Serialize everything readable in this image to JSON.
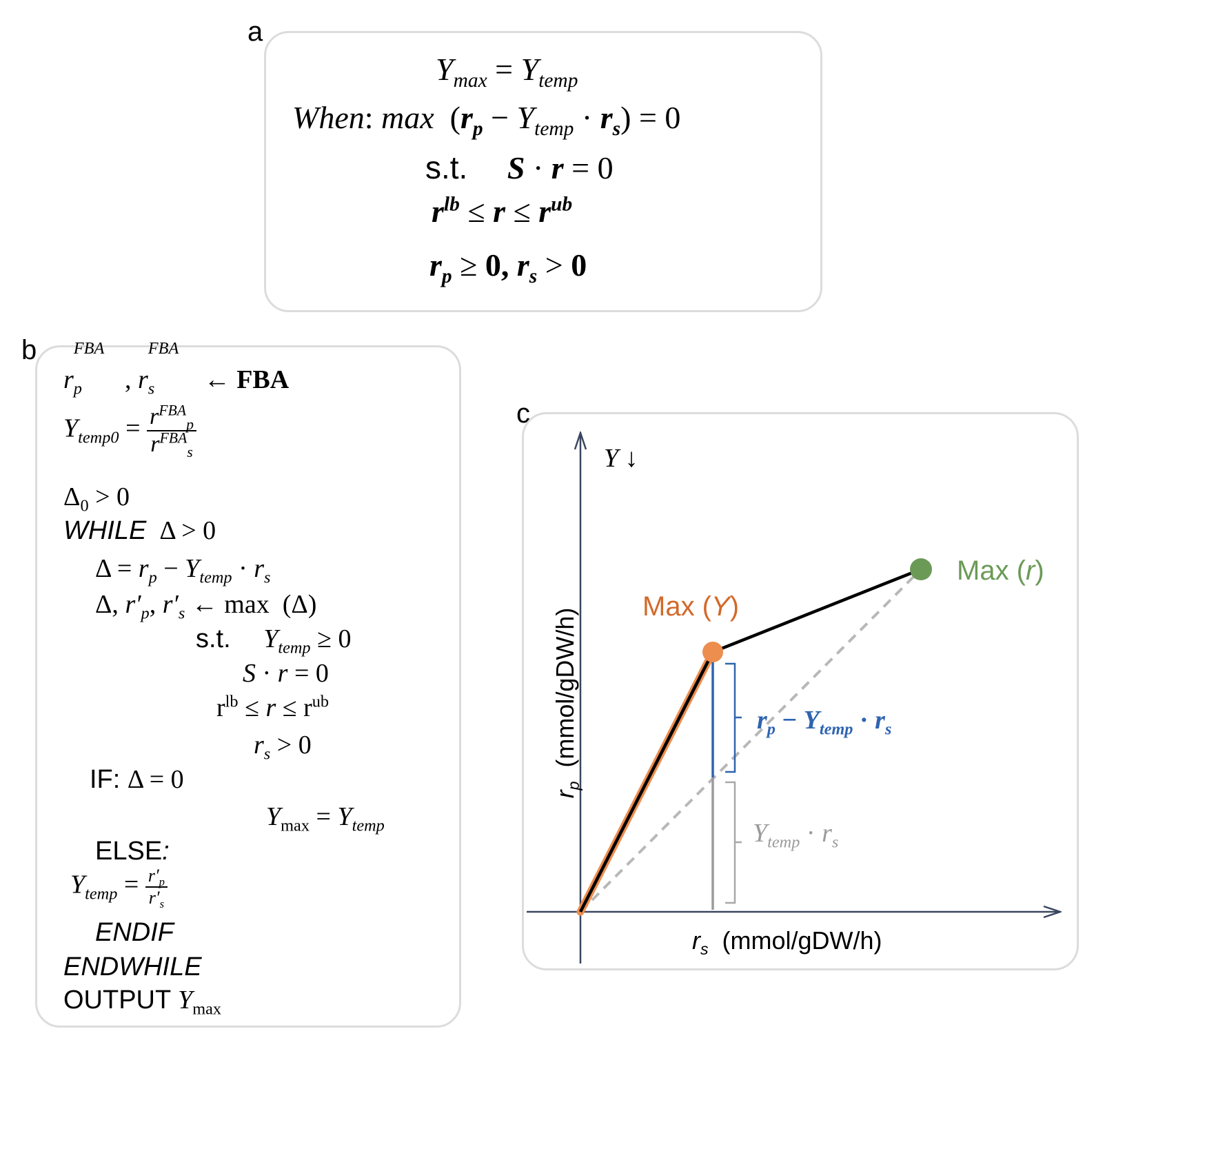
{
  "panels": {
    "a": {
      "letter": "a",
      "line1": {
        "lhs": "Y",
        "lhs_sub": "max",
        "eq": "=",
        "rhs": "Y",
        "rhs_sub": "temp"
      },
      "line2": {
        "when": "When",
        "colon": ":",
        "max": "max",
        "open": "(",
        "rp": "r",
        "rp_sub": "p",
        "minus": "−",
        "y": "Y",
        "y_sub": "temp",
        "dot": "·",
        "rs": "r",
        "rs_sub": "s",
        "close": ")",
        "eq": "=",
        "zero": "0"
      },
      "line3": {
        "st": "s.t.",
        "S": "S",
        "dot": "·",
        "r": "r",
        "eq": "=",
        "zero": "0"
      },
      "line4": {
        "r1": "r",
        "sup1": "lb",
        "leq1": "≤",
        "r2": "r",
        "leq2": "≤",
        "r3": "r",
        "sup3": "ub"
      },
      "line5": {
        "rp": "r",
        "rp_sub": "p",
        "geq": "≥",
        "zero1": "0,",
        "rs": "r",
        "rs_sub": "s",
        "gt": ">",
        "zero2": "0"
      }
    },
    "b": {
      "letter": "b",
      "l1": {
        "rp": "r",
        "rp_sub": "p",
        "rp_sup": "FBA",
        "comma": ",",
        "rs": "r",
        "rs_sub": "s",
        "rs_sup": "FBA",
        "arrow": "←",
        "fba": "FBA"
      },
      "l2": {
        "y": "Y",
        "y_sub": "temp0",
        "eq": "=",
        "num": "r",
        "num_sub": "p",
        "num_sup": "FBA",
        "den": "r",
        "den_sub": "s",
        "den_sup": "FBA"
      },
      "l3": {
        "delta": "Δ",
        "sub": "0",
        "rest": " > 0"
      },
      "l4": {
        "kw": "WHILE",
        "rest": "  Δ > 0"
      },
      "l5": {
        "lhs": "Δ = ",
        "rp": "r",
        "rp_sub": "p",
        "minus": " − ",
        "y": "Y",
        "y_sub": "temp",
        "dot": " · ",
        "rs": "r",
        "rs_sub": "s"
      },
      "l6": {
        "lhs": "Δ, ",
        "rp": "r′",
        "rp_sub": "p",
        "comma": ", ",
        "rs": "r′",
        "rs_sub": "s",
        "arrow": " ← max  (Δ)"
      },
      "l7": {
        "st": "s.t.",
        "y": "Y",
        "y_sub": "temp",
        "rest": " ≥ 0"
      },
      "l8": {
        "S": "S",
        "rest": " · ",
        "r": "r",
        "rest2": " = 0"
      },
      "l9": {
        "r1": "r",
        "sup1": "lb",
        "leq1": " ≤ ",
        "r": "r",
        "leq2": " ≤ ",
        "r3": "r",
        "sup3": "ub"
      },
      "l10": {
        "r": "r",
        "sub": "s",
        "rest": " > 0"
      },
      "l11": {
        "kw": "IF: ",
        "rest": "Δ = 0"
      },
      "l12": {
        "y": "Y",
        "y_sub": "max",
        "eq": " = ",
        "rhs": "Y",
        "rhs_sub": "temp"
      },
      "l13": {
        "kw": "ELSE",
        "colon": ":"
      },
      "l14": {
        "y": "Y",
        "y_sub": "temp",
        "eq": "=",
        "num": "r′",
        "num_sub": "p",
        "den": "r′",
        "den_sub": "s"
      },
      "l15": {
        "kw": "ENDIF"
      },
      "l16": {
        "kw": "ENDWHILE"
      },
      "l17": {
        "kw": "OUTPUT ",
        "y": "Y",
        "y_sub": "max"
      }
    },
    "c": {
      "letter": "c",
      "y_axis_title": {
        "r": "r",
        "sub": "p",
        "unit": "(mmol/gDW/h)"
      },
      "x_axis_title": {
        "r": "r",
        "sub": "s",
        "unit": "(mmol/gDW/h)"
      },
      "y_arrow_label": {
        "y": "Y",
        "arrow": "↓"
      },
      "max_y_label": {
        "pre": "Max (",
        "y": "Y",
        "post": ")"
      },
      "max_r_label": {
        "pre": "Max (",
        "r": "r",
        "post": ")"
      },
      "blue_label": {
        "rp": "r",
        "rp_sub": "p",
        "minus": " − ",
        "y": "Y",
        "y_sub": "temp",
        "dot": " · ",
        "rs": "r",
        "rs_sub": "s"
      },
      "gray_label": {
        "y": "Y",
        "y_sub": "temp",
        "dot": " · ",
        "rs": "r",
        "rs_sub": "s"
      },
      "colors": {
        "orange": "#ED8D4E",
        "orange_text": "#D2692A",
        "green": "#6B9A57",
        "blue": "#2E64B0",
        "gray": "#9B9B9B",
        "axis": "#3A4660"
      }
    }
  }
}
